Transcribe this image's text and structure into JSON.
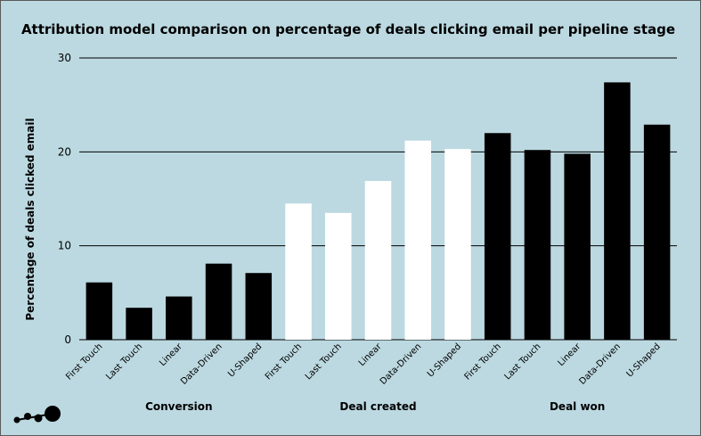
{
  "chart_data": {
    "type": "bar",
    "title": "Attribution model comparison on percentage of deals clicking email per pipeline stage",
    "ylabel": "Percentage of deals clicked email",
    "ylim": [
      0,
      30
    ],
    "yticks": [
      0,
      10,
      20,
      30
    ],
    "grid": true,
    "categories": [
      "First Touch",
      "Last Touch",
      "Linear",
      "Data-Driven",
      "U-Shaped"
    ],
    "series": [
      {
        "name": "Conversion",
        "color": "#000000",
        "values": [
          6.1,
          3.4,
          4.6,
          8.1,
          7.1
        ]
      },
      {
        "name": "Deal created",
        "color": "#ffffff",
        "values": [
          14.5,
          13.5,
          16.9,
          21.2,
          20.3
        ]
      },
      {
        "name": "Deal won",
        "color": "#000000",
        "values": [
          22.0,
          20.2,
          19.8,
          27.4,
          22.9
        ]
      }
    ]
  },
  "logo": {
    "icon": "dots-line-logo"
  }
}
